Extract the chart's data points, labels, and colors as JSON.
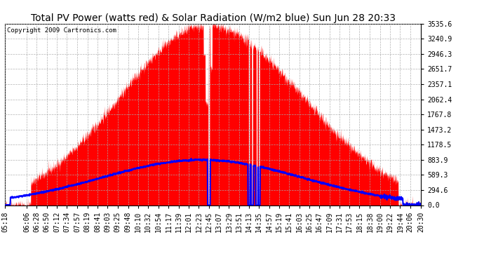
{
  "title": "Total PV Power (watts red) & Solar Radiation (W/m2 blue) Sun Jun 28 20:33",
  "copyright": "Copyright 2009 Cartronics.com",
  "ymax": 3535.6,
  "yticks": [
    0.0,
    294.6,
    589.3,
    883.9,
    1178.5,
    1473.2,
    1767.8,
    2062.4,
    2357.1,
    2651.7,
    2946.3,
    3240.9,
    3535.6
  ],
  "background_color": "#ffffff",
  "fill_color": "#ff0000",
  "line_color": "#0000ff",
  "grid_color": "#aaaaaa",
  "title_fontsize": 10,
  "copyright_fontsize": 6.5,
  "tick_fontsize": 7,
  "x_tick_labels": [
    "05:18",
    "06:06",
    "06:28",
    "06:50",
    "07:12",
    "07:34",
    "07:57",
    "08:19",
    "08:41",
    "09:03",
    "09:25",
    "09:48",
    "10:10",
    "10:32",
    "10:54",
    "11:17",
    "11:39",
    "12:01",
    "12:23",
    "12:45",
    "13:07",
    "13:29",
    "13:51",
    "14:13",
    "14:35",
    "14:57",
    "15:19",
    "15:41",
    "16:03",
    "16:25",
    "16:47",
    "17:09",
    "17:31",
    "17:53",
    "18:15",
    "18:38",
    "19:00",
    "19:22",
    "19:44",
    "20:06",
    "20:30"
  ]
}
